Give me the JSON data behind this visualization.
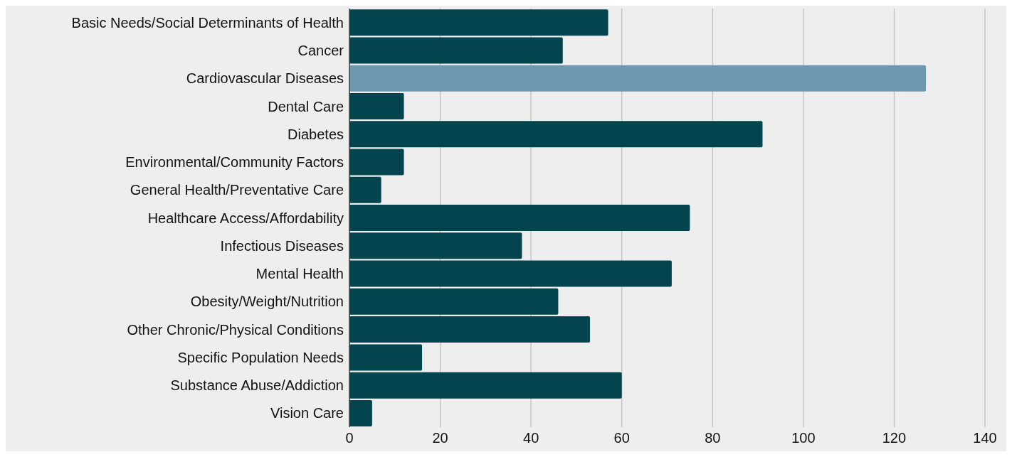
{
  "chart_data": {
    "type": "bar",
    "orientation": "horizontal",
    "categories": [
      "Basic Needs/Social Determinants of Health",
      "Cancer",
      "Cardiovascular Diseases",
      "Dental Care",
      "Diabetes",
      "Environmental/Community Factors",
      "General Health/Preventative Care",
      "Healthcare Access/Affordability",
      "Infectious Diseases",
      "Mental Health",
      "Obesity/Weight/Nutrition",
      "Other Chronic/Physical Conditions",
      "Specific Population Needs",
      "Substance Abuse/Addiction",
      "Vision Care"
    ],
    "values": [
      57,
      47,
      127,
      12,
      91,
      12,
      7,
      75,
      38,
      71,
      46,
      53,
      16,
      60,
      5
    ],
    "colors": [
      "#03444f",
      "#03444f",
      "#6e98b0",
      "#03444f",
      "#03444f",
      "#03444f",
      "#03444f",
      "#03444f",
      "#03444f",
      "#03444f",
      "#03444f",
      "#03444f",
      "#03444f",
      "#03444f",
      "#03444f"
    ],
    "xlim": [
      0,
      140
    ],
    "xticks": [
      0,
      20,
      40,
      60,
      80,
      100,
      120,
      140
    ],
    "grid": "x"
  }
}
